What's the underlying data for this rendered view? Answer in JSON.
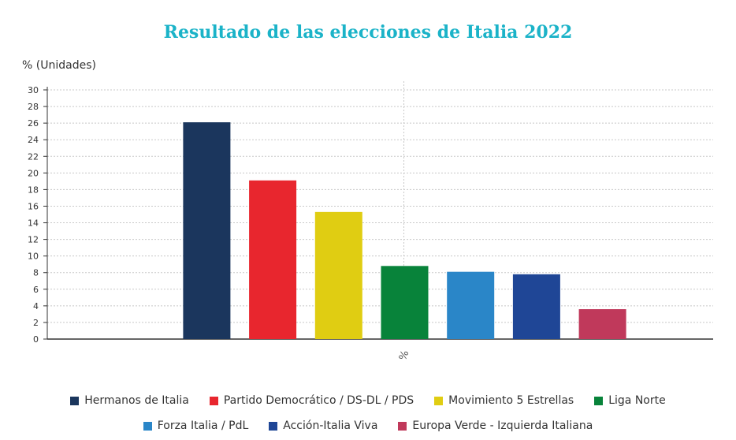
{
  "chart_data": {
    "type": "bar",
    "title": "Resultado de las elecciones de Italia 2022",
    "ylabel": "% (Unidades)",
    "xlabel": "",
    "categories": [
      "%"
    ],
    "ylim": [
      0,
      30
    ],
    "yticks": [
      0,
      2,
      4,
      6,
      8,
      10,
      12,
      14,
      16,
      18,
      20,
      22,
      24,
      26,
      28,
      30
    ],
    "grid": true,
    "legend_position": "bottom",
    "series": [
      {
        "name": "Hermanos de Italia",
        "values": [
          26.1
        ],
        "color": "#1b365d"
      },
      {
        "name": "Partido Democrático / DS-DL / PDS",
        "values": [
          19.1
        ],
        "color": "#e8262e"
      },
      {
        "name": "Movimiento 5 Estrellas",
        "values": [
          15.3
        ],
        "color": "#e0cd12"
      },
      {
        "name": "Liga Norte",
        "values": [
          8.8
        ],
        "color": "#08833a"
      },
      {
        "name": "Forza Italia / PdL",
        "values": [
          8.1
        ],
        "color": "#2a86c8"
      },
      {
        "name": "Acción-Italia Viva",
        "values": [
          7.8
        ],
        "color": "#1f4696"
      },
      {
        "name": "Europa Verde - Izquierda Italiana",
        "values": [
          3.6
        ],
        "color": "#c0395b"
      }
    ]
  }
}
